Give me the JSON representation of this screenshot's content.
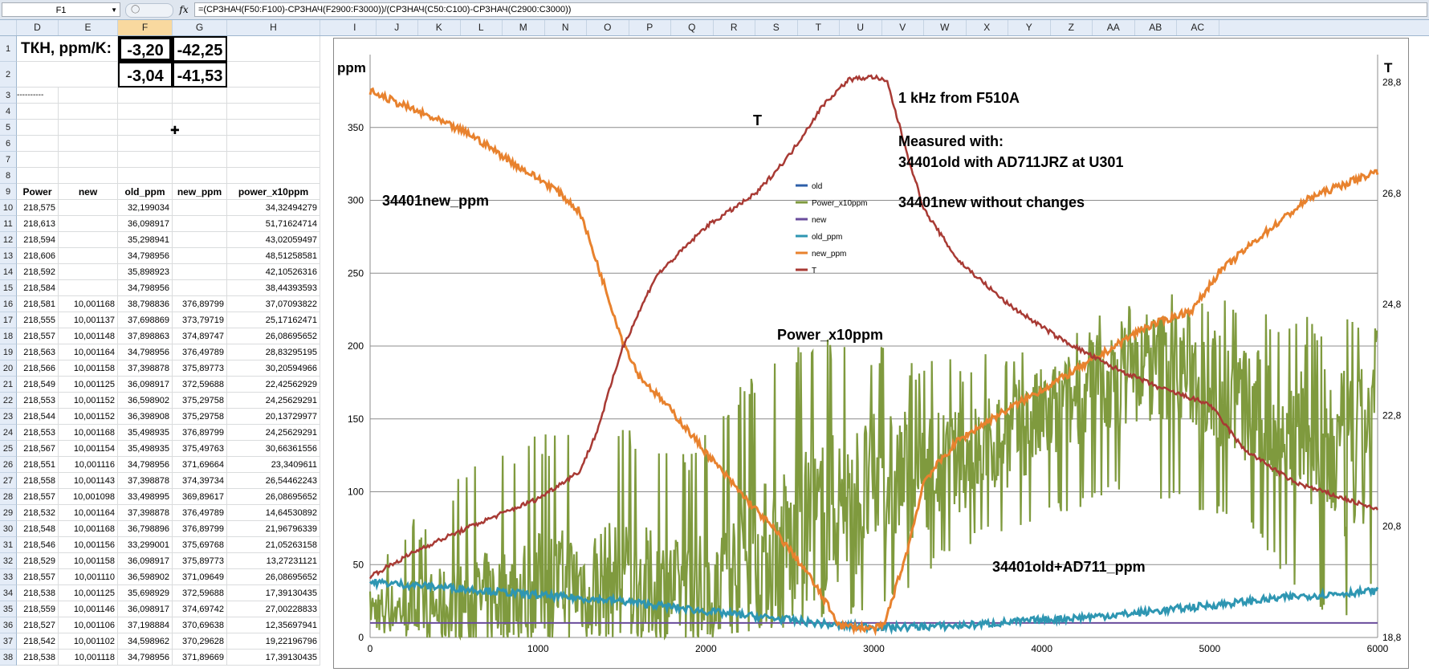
{
  "formula_bar": {
    "name_box": "F1",
    "fx": "fx",
    "formula": "=(СРЗНАЧ(F50:F100)-СРЗНАЧ(F2900:F3000))/(СРЗНАЧ(C50:C100)-СРЗНАЧ(C2900:C3000))"
  },
  "columns": [
    "D",
    "E",
    "F",
    "G",
    "H",
    "I",
    "J",
    "K",
    "L",
    "M",
    "N",
    "O",
    "P",
    "Q",
    "R",
    "S",
    "T",
    "U",
    "V",
    "W",
    "X",
    "Y",
    "Z",
    "AA",
    "AB",
    "AC"
  ],
  "rows": [
    "1",
    "2",
    "3",
    "4",
    "5",
    "6",
    "7",
    "8",
    "9",
    "10",
    "11",
    "12",
    "13",
    "14",
    "15",
    "16",
    "17",
    "18",
    "19",
    "20",
    "21",
    "22",
    "23",
    "24",
    "25",
    "26",
    "27",
    "28",
    "29",
    "30",
    "31",
    "32",
    "33",
    "34",
    "35",
    "36",
    "37",
    "38"
  ],
  "sheet": {
    "tkn_label": "ТКН, ppm/K:",
    "f1": "-3,20",
    "g1": "-42,25",
    "f2": "-3,04",
    "g2": "-41,53",
    "d3": "----------",
    "headers": [
      "Power",
      "new",
      "old_ppm",
      "new_ppm",
      "power_x10ppm"
    ],
    "data": [
      [
        "218,575",
        "",
        "32,199034",
        "",
        "34,32494279"
      ],
      [
        "218,613",
        "",
        "36,098917",
        "",
        "51,71624714"
      ],
      [
        "218,594",
        "",
        "35,298941",
        "",
        "43,02059497"
      ],
      [
        "218,606",
        "",
        "34,798956",
        "",
        "48,51258581"
      ],
      [
        "218,592",
        "",
        "35,898923",
        "",
        "42,10526316"
      ],
      [
        "218,584",
        "",
        "34,798956",
        "",
        "38,44393593"
      ],
      [
        "218,581",
        "10,001168",
        "38,798836",
        "376,89799",
        "37,07093822"
      ],
      [
        "218,555",
        "10,001137",
        "37,698869",
        "373,79719",
        "25,17162471"
      ],
      [
        "218,557",
        "10,001148",
        "37,898863",
        "374,89747",
        "26,08695652"
      ],
      [
        "218,563",
        "10,001164",
        "34,798956",
        "376,49789",
        "28,83295195"
      ],
      [
        "218,566",
        "10,001158",
        "37,398878",
        "375,89773",
        "30,20594966"
      ],
      [
        "218,549",
        "10,001125",
        "36,098917",
        "372,59688",
        "22,42562929"
      ],
      [
        "218,553",
        "10,001152",
        "36,598902",
        "375,29758",
        "24,25629291"
      ],
      [
        "218,544",
        "10,001152",
        "36,398908",
        "375,29758",
        "20,13729977"
      ],
      [
        "218,553",
        "10,001168",
        "35,498935",
        "376,89799",
        "24,25629291"
      ],
      [
        "218,567",
        "10,001154",
        "35,498935",
        "375,49763",
        "30,66361556"
      ],
      [
        "218,551",
        "10,001116",
        "34,798956",
        "371,69664",
        "23,3409611"
      ],
      [
        "218,558",
        "10,001143",
        "37,398878",
        "374,39734",
        "26,54462243"
      ],
      [
        "218,557",
        "10,001098",
        "33,498995",
        "369,89617",
        "26,08695652"
      ],
      [
        "218,532",
        "10,001164",
        "37,398878",
        "376,49789",
        "14,64530892"
      ],
      [
        "218,548",
        "10,001168",
        "36,798896",
        "376,89799",
        "21,96796339"
      ],
      [
        "218,546",
        "10,001156",
        "33,299001",
        "375,69768",
        "21,05263158"
      ],
      [
        "218,529",
        "10,001158",
        "36,098917",
        "375,89773",
        "13,27231121"
      ],
      [
        "218,557",
        "10,001110",
        "36,598902",
        "371,09649",
        "26,08695652"
      ],
      [
        "218,538",
        "10,001125",
        "35,698929",
        "372,59688",
        "17,39130435"
      ],
      [
        "218,559",
        "10,001146",
        "36,098917",
        "374,69742",
        "27,00228833"
      ],
      [
        "218,527",
        "10,001106",
        "37,198884",
        "370,69638",
        "12,35697941"
      ],
      [
        "218,542",
        "10,001102",
        "34,598962",
        "370,29628",
        "19,22196796"
      ],
      [
        "218,538",
        "10,001118",
        "34,798956",
        "371,89669",
        "17,39130435"
      ]
    ]
  },
  "chart_data": {
    "type": "line",
    "ylabel_left": "ppm",
    "ylabel_right": "T",
    "xlim": [
      0,
      6000
    ],
    "ylim_left": [
      0,
      400
    ],
    "ylim_right": [
      18.8,
      29.3
    ],
    "x_ticks": [
      "0",
      "1000",
      "2000",
      "3000",
      "4000",
      "5000",
      "6000"
    ],
    "y_ticks_left": [
      "0",
      "50",
      "100",
      "150",
      "200",
      "250",
      "300",
      "350"
    ],
    "y_ticks_right": [
      "18,8",
      "20,8",
      "22,8",
      "24,8",
      "26,8",
      "28,8"
    ],
    "grid": true,
    "legend_position": "center",
    "legend": [
      {
        "name": "old",
        "color": "#2e5fa8"
      },
      {
        "name": "Power_x10ppm",
        "color": "#7f9a3e"
      },
      {
        "name": "new",
        "color": "#6a4c9c"
      },
      {
        "name": "old_ppm",
        "color": "#2e96b2"
      },
      {
        "name": "new_ppm",
        "color": "#e8822e"
      },
      {
        "name": "T",
        "color": "#a83a34"
      }
    ],
    "annotations": {
      "title1": "1 kHz from F510A",
      "line1": "Measured with:",
      "line2": "34401old with AD711JRZ at U301",
      "line3": "34401new without changes",
      "new_label": "34401new_ppm",
      "power_label": "Power_x10ppm",
      "old_label": "34401old+AD711_ppm",
      "t_label": "T"
    },
    "series": [
      {
        "name": "new_ppm",
        "color": "#e8822e",
        "points": [
          [
            0,
            375
          ],
          [
            300,
            360
          ],
          [
            600,
            345
          ],
          [
            900,
            322
          ],
          [
            1100,
            308
          ],
          [
            1250,
            292
          ],
          [
            1400,
            240
          ],
          [
            1500,
            205
          ],
          [
            1600,
            180
          ],
          [
            1800,
            155
          ],
          [
            2000,
            127
          ],
          [
            2200,
            100
          ],
          [
            2400,
            75
          ],
          [
            2600,
            45
          ],
          [
            2800,
            8
          ],
          [
            3000,
            6
          ],
          [
            3060,
            8
          ],
          [
            3200,
            60
          ],
          [
            3300,
            108
          ],
          [
            3500,
            135
          ],
          [
            3700,
            150
          ],
          [
            4000,
            170
          ],
          [
            4300,
            190
          ],
          [
            4600,
            212
          ],
          [
            4900,
            225
          ],
          [
            5050,
            250
          ],
          [
            5300,
            275
          ],
          [
            5600,
            302
          ],
          [
            6000,
            320
          ]
        ]
      },
      {
        "name": "old_ppm",
        "color": "#2e96b2",
        "points": [
          [
            0,
            38
          ],
          [
            500,
            34
          ],
          [
            1000,
            29
          ],
          [
            1500,
            25
          ],
          [
            2000,
            18
          ],
          [
            2500,
            12
          ],
          [
            2800,
            8
          ],
          [
            3100,
            7
          ],
          [
            3500,
            8
          ],
          [
            4000,
            12
          ],
          [
            4500,
            16
          ],
          [
            5000,
            22
          ],
          [
            5500,
            28
          ],
          [
            6000,
            32
          ]
        ]
      },
      {
        "name": "new",
        "color": "#6a4c9c",
        "points": [
          [
            0,
            10
          ],
          [
            6000,
            10
          ]
        ]
      },
      {
        "name": "T",
        "color": "#a83a34",
        "points": [
          [
            0,
            19.9
          ],
          [
            300,
            20.4
          ],
          [
            600,
            20.8
          ],
          [
            1000,
            21.3
          ],
          [
            1250,
            21.8
          ],
          [
            1350,
            22.5
          ],
          [
            1500,
            24.0
          ],
          [
            1700,
            25.3
          ],
          [
            2000,
            26.2
          ],
          [
            2300,
            26.8
          ],
          [
            2500,
            27.5
          ],
          [
            2700,
            28.4
          ],
          [
            2850,
            28.85
          ],
          [
            3000,
            28.9
          ],
          [
            3080,
            28.8
          ],
          [
            3200,
            27.5
          ],
          [
            3300,
            26.5
          ],
          [
            3500,
            25.6
          ],
          [
            3800,
            24.8
          ],
          [
            4100,
            24.2
          ],
          [
            4400,
            23.7
          ],
          [
            4700,
            23.3
          ],
          [
            4900,
            23.1
          ],
          [
            5000,
            23.0
          ],
          [
            5200,
            22.2
          ],
          [
            5500,
            21.6
          ],
          [
            5800,
            21.3
          ],
          [
            6000,
            21.1
          ]
        ]
      },
      {
        "name": "Power_x10ppm",
        "color": "#7f9a3e",
        "envelope": [
          [
            0,
            20,
            0,
            50
          ],
          [
            500,
            20,
            0,
            110
          ],
          [
            1000,
            35,
            0,
            140
          ],
          [
            1500,
            40,
            0,
            150
          ],
          [
            1900,
            30,
            0,
            130
          ],
          [
            2400,
            60,
            5,
            200
          ],
          [
            2800,
            90,
            10,
            210
          ],
          [
            3100,
            110,
            20,
            200
          ],
          [
            3500,
            120,
            60,
            190
          ],
          [
            4000,
            150,
            80,
            210
          ],
          [
            4500,
            180,
            100,
            230
          ],
          [
            4800,
            190,
            90,
            240
          ],
          [
            5200,
            160,
            80,
            230
          ],
          [
            5600,
            130,
            20,
            220
          ],
          [
            5900,
            120,
            0,
            230
          ],
          [
            6000,
            180,
            50,
            220
          ]
        ]
      }
    ]
  }
}
